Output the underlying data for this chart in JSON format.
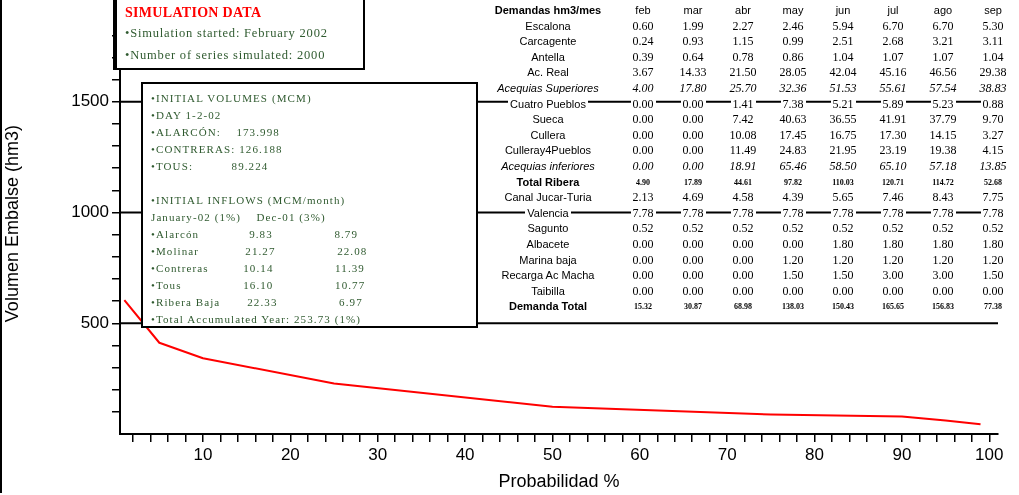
{
  "chart_data": {
    "type": "line",
    "xlabel": "Probabilidad %",
    "ylabel": "Volumen Embalse (hm3)",
    "x": [
      1,
      5,
      10,
      25,
      50,
      75,
      90,
      95,
      99
    ],
    "series": [
      {
        "color": "#ff0000",
        "values": [
          605,
          412,
          342,
          228,
          123,
          88,
          79,
          61,
          44
        ]
      }
    ],
    "xlim": [
      0.5,
      101
    ],
    "ylim": [
      0,
      1900
    ],
    "xticks": [
      {
        "value": 2,
        "label": null
      },
      {
        "value": 4,
        "label": null
      },
      {
        "value": 6,
        "label": null
      },
      {
        "value": 8,
        "label": null
      },
      10,
      {
        "value": 12,
        "label": null
      },
      {
        "value": 14,
        "label": null
      },
      {
        "value": 16,
        "label": null
      },
      {
        "value": 18,
        "label": null
      },
      20,
      {
        "value": 22,
        "label": null
      },
      {
        "value": 24,
        "label": null
      },
      {
        "value": 26,
        "label": null
      },
      {
        "value": 28,
        "label": null
      },
      30,
      {
        "value": 32,
        "label": null
      },
      {
        "value": 34,
        "label": null
      },
      {
        "value": 36,
        "label": null
      },
      {
        "value": 38,
        "label": null
      },
      40,
      {
        "value": 42,
        "label": null
      },
      {
        "value": 44,
        "label": null
      },
      {
        "value": 46,
        "label": null
      },
      {
        "value": 48,
        "label": null
      },
      50,
      {
        "value": 52,
        "label": null
      },
      {
        "value": 54,
        "label": null
      },
      {
        "value": 56,
        "label": null
      },
      {
        "value": 58,
        "label": null
      },
      60,
      {
        "value": 62,
        "label": null
      },
      {
        "value": 64,
        "label": null
      },
      {
        "value": 66,
        "label": null
      },
      {
        "value": 68,
        "label": null
      },
      70,
      {
        "value": 72,
        "label": null
      },
      {
        "value": 74,
        "label": null
      },
      {
        "value": 76,
        "label": null
      },
      {
        "value": 78,
        "label": null
      },
      80,
      {
        "value": 82,
        "label": null
      },
      {
        "value": 84,
        "label": null
      },
      {
        "value": 86,
        "label": null
      },
      {
        "value": 88,
        "label": null
      },
      90,
      {
        "value": 92,
        "label": null
      },
      {
        "value": 94,
        "label": null
      },
      {
        "value": 96,
        "label": null
      },
      {
        "value": 98,
        "label": null
      },
      100
    ],
    "yticks": [
      {
        "value": 100,
        "label": null
      },
      {
        "value": 200,
        "label": null
      },
      {
        "value": 300,
        "label": null
      },
      {
        "value": 400,
        "label": null
      },
      500,
      {
        "value": 600,
        "label": null
      },
      {
        "value": 700,
        "label": null
      },
      {
        "value": 800,
        "label": null
      },
      {
        "value": 900,
        "label": null
      },
      1000,
      {
        "value": 1100,
        "label": null
      },
      {
        "value": 1200,
        "label": null
      },
      {
        "value": 1300,
        "label": null
      },
      {
        "value": 1400,
        "label": null
      },
      1500,
      {
        "value": 1600,
        "label": null
      },
      {
        "value": 1700,
        "label": null
      },
      {
        "value": 1800,
        "label": null
      }
    ],
    "grid": "y",
    "legend": false,
    "marker": "none",
    "line_style": "solid",
    "annotations": [
      "SIMULATION DATA",
      "•Simulation started: February 2002",
      "•Number of series simulated: 2000",
      "•INITIAL VOLUMES (MCM)",
      "•DAY 1-2-02",
      "•ALARCÓN:    173.998",
      "•CONTRERAS: 126.188",
      "•TOUS:          89.224",
      "•INITIAL INFLOWS (MCM/month)",
      "January-02 (1%)    Dec-01 (3%)",
      "•Alarcón             9.83                8.79",
      "•Molinar            21.27                22.08",
      "•Contreras         10.14                11.39",
      "•Tous                16.10                10.77",
      "•Ribera Baja       22.33                6.97",
      "•Total Accumulated Year: 253.73 (1%)",
      "Demandas hm3/mes",
      "feb",
      "mar",
      "abr",
      "may",
      "jun",
      "jul",
      "ago",
      "sep",
      "Escalona",
      "0.60",
      "1.99",
      "2.27",
      "2.46",
      "5.94",
      "6.70",
      "6.70",
      "5.30",
      "Carcagente",
      "0.24",
      "0.93",
      "1.15",
      "0.99",
      "2.51",
      "2.68",
      "3.21",
      "3.11",
      "Antella",
      "0.39",
      "0.64",
      "0.78",
      "0.86",
      "1.04",
      "1.07",
      "1.07",
      "1.04",
      "Ac. Real",
      "3.67",
      "14.33",
      "21.50",
      "28.05",
      "42.04",
      "45.16",
      "46.56",
      "29.38",
      "Acequias Superiores",
      "4.00",
      "17.80",
      "25.70",
      "32.36",
      "51.53",
      "55.61",
      "57.54",
      "38.83",
      "Cuatro Pueblos",
      "0.00",
      "0.00",
      "1.41",
      "7.38",
      "5.21",
      "5.89",
      "5.23",
      "0.88",
      "Sueca",
      "0.00",
      "0.00",
      "7.42",
      "40.63",
      "36.55",
      "41.91",
      "37.79",
      "9.70",
      "Cullera",
      "0.00",
      "0.00",
      "10.08",
      "17.45",
      "16.75",
      "17.30",
      "14.15",
      "3.27",
      "Culleray4Pueblos",
      "0.00",
      "0.00",
      "11.49",
      "24.83",
      "21.95",
      "23.19",
      "19.38",
      "4.15",
      "Acequias inferiores",
      "0.00",
      "0.00",
      "18.91",
      "65.46",
      "58.50",
      "65.10",
      "57.18",
      "13.85",
      "Total Ribera",
      "4.90",
      "17.89",
      "44.61",
      "97.82",
      "110.03",
      "120.71",
      "114.72",
      "52.68",
      "Canal Jucar-Turia",
      "2.13",
      "4.69",
      "4.58",
      "4.39",
      "5.65",
      "7.46",
      "8.43",
      "7.75",
      "Valencia",
      "7.78",
      "7.78",
      "7.78",
      "7.78",
      "7.78",
      "7.78",
      "7.78",
      "7.78",
      "Sagunto",
      "0.52",
      "0.52",
      "0.52",
      "0.52",
      "0.52",
      "0.52",
      "0.52",
      "0.52",
      "Albacete",
      "0.00",
      "0.00",
      "0.00",
      "0.00",
      "1.80",
      "1.80",
      "1.80",
      "1.80",
      "Marina baja",
      "0.00",
      "0.00",
      "0.00",
      "1.20",
      "1.20",
      "1.20",
      "1.20",
      "1.20",
      "Recarga Ac Macha",
      "0.00",
      "0.00",
      "0.00",
      "1.50",
      "1.50",
      "3.00",
      "3.00",
      "1.50",
      "Taibilla",
      "0.00",
      "0.00",
      "0.00",
      "0.00",
      "0.00",
      "0.00",
      "0.00",
      "0.00",
      "Demanda Total",
      "15.32",
      "30.87",
      "68.98",
      "138.03",
      "150.43",
      "165.65",
      "156.83",
      "77.38"
    ]
  }
}
